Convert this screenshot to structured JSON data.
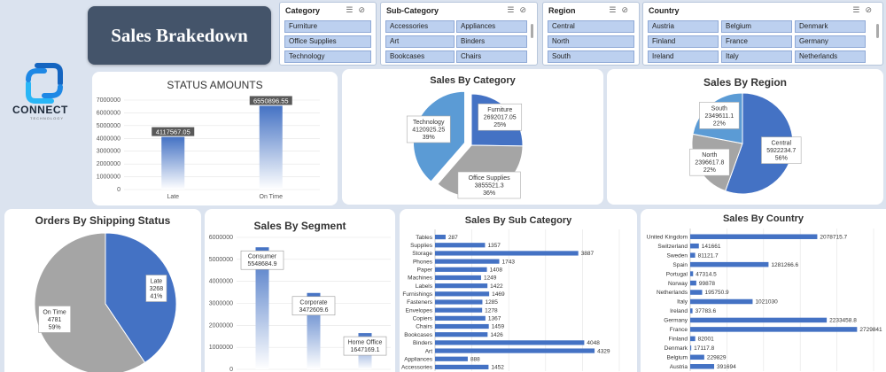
{
  "dashboard_title": "Sales Brakedown",
  "logo": {
    "name": "CONNECT",
    "tagline": "TECHNOLOGY",
    "icon": "connect-logo-icon"
  },
  "slicers": {
    "category": {
      "title": "Category",
      "items": [
        "Furniture",
        "Office Supplies",
        "Technology"
      ]
    },
    "subcategory": {
      "title": "Sub-Category",
      "items": [
        "Accessories",
        "Appliances",
        "Art",
        "Binders",
        "Bookcases",
        "Chairs"
      ]
    },
    "region": {
      "title": "Region",
      "items": [
        "Central",
        "North",
        "South"
      ]
    },
    "country": {
      "title": "Country",
      "items": [
        "Austria",
        "Belgium",
        "Denmark",
        "Finland",
        "France",
        "Germany",
        "Ireland",
        "Italy",
        "Netherlands"
      ]
    },
    "icons": [
      "multi-select-icon",
      "clear-filter-icon"
    ]
  },
  "colors": {
    "blue": "#4472c4",
    "light_blue": "#5b9bd5",
    "gray": "#a5a5a5",
    "header": "#44546a"
  },
  "chart_data": [
    {
      "id": "status",
      "type": "bar",
      "title": "STATUS AMOUNTS",
      "categories": [
        "Late",
        "On Time"
      ],
      "values": [
        4117567.05,
        6550896.55
      ],
      "data_labels": [
        "4117567.05",
        "6550896.55"
      ],
      "yticks": [
        "7000000",
        "6000000",
        "5000000",
        "4000000",
        "3000000",
        "2000000",
        "1000000",
        "0"
      ],
      "ylim": [
        0,
        7000000
      ]
    },
    {
      "id": "category",
      "type": "pie",
      "title": "Sales By Category",
      "slices": [
        {
          "name": "Furniture",
          "value": 2692017.05,
          "percent": 25,
          "value_label": "2692017.05",
          "pct_label": "25%",
          "color": "#4472c4"
        },
        {
          "name": "Office Supplies",
          "value": 3855521.3,
          "percent": 36,
          "value_label": "3855521.3",
          "pct_label": "36%",
          "color": "#a5a5a5"
        },
        {
          "name": "Technology",
          "value": 4120925.25,
          "percent": 39,
          "value_label": "4120925.25",
          "pct_label": "39%",
          "color": "#5b9bd5"
        }
      ]
    },
    {
      "id": "region",
      "type": "pie",
      "title": "Sales By Region",
      "slices": [
        {
          "name": "Central",
          "value": 5922234.7,
          "percent": 56,
          "value_label": "5922234.7",
          "pct_label": "56%",
          "color": "#4472c4"
        },
        {
          "name": "North",
          "value": 2396617.8,
          "percent": 22,
          "value_label": "2396617.8",
          "pct_label": "22%",
          "color": "#a5a5a5"
        },
        {
          "name": "South",
          "value": 2349611.1,
          "percent": 22,
          "value_label": "2349611.1",
          "pct_label": "22%",
          "color": "#5b9bd5"
        }
      ]
    },
    {
      "id": "shipping",
      "type": "pie",
      "title": "Orders By Shipping Status",
      "slices": [
        {
          "name": "Late",
          "value": 3268,
          "percent": 41,
          "value_label": "3268",
          "pct_label": "41%",
          "color": "#4472c4"
        },
        {
          "name": "On Time",
          "value": 4781,
          "percent": 59,
          "value_label": "4781",
          "pct_label": "59%",
          "color": "#a5a5a5"
        }
      ]
    },
    {
      "id": "segment",
      "type": "bar",
      "title": "Sales By Segment",
      "categories": [
        "Consumer",
        "Corporate",
        "Home Office"
      ],
      "values": [
        5548684.9,
        3472609.6,
        1647169.1
      ],
      "data_labels": [
        "5548684.9",
        "3472609.6",
        "1647169.1"
      ],
      "yticks": [
        "6000000",
        "5000000",
        "4000000",
        "3000000",
        "2000000",
        "1000000",
        "0"
      ],
      "ylim": [
        0,
        6000000
      ]
    },
    {
      "id": "subcategory",
      "type": "bar",
      "orientation": "horizontal",
      "title": "Sales By Sub Category",
      "categories": [
        "Tables",
        "Supplies",
        "Storage",
        "Phones",
        "Paper",
        "Machines",
        "Labels",
        "Furnishings",
        "Fasteners",
        "Envelopes",
        "Copiers",
        "Chairs",
        "Bookcases",
        "Binders",
        "Art",
        "Appliances",
        "Accessories"
      ],
      "values": [
        287,
        1357,
        3887,
        1743,
        1408,
        1249,
        1422,
        1469,
        1285,
        1278,
        1367,
        1459,
        1426,
        4048,
        4329,
        888,
        1452
      ],
      "data_labels": [
        "287",
        "1357",
        "3887",
        "1743",
        "1408",
        "1249",
        "1422",
        "1469",
        "1285",
        "1278",
        "1367",
        "1459",
        "1426",
        "4048",
        "4329",
        "888",
        "1452"
      ],
      "xlim": [
        0,
        5000
      ]
    },
    {
      "id": "country",
      "type": "bar",
      "orientation": "horizontal",
      "title": "Sales By Country",
      "categories": [
        "United Kingdom",
        "Switzerland",
        "Sweden",
        "Spain",
        "Portugal",
        "Norway",
        "Netherlands",
        "Italy",
        "Ireland",
        "Germany",
        "France",
        "Finland",
        "Denmark",
        "Belgium",
        "Austria"
      ],
      "values": [
        2078715.7,
        141661,
        81121.7,
        1281266.6,
        47314.5,
        99878,
        195750.9,
        1021030,
        37783.6,
        2233458.8,
        2729841,
        82001,
        17117.8,
        229829,
        391694
      ],
      "data_labels": [
        "2078715.7",
        "141661",
        "81121.7",
        "1281266.6",
        "47314.5",
        "99878",
        "195750.9",
        "1021030",
        "37783.6",
        "2233458.8",
        "2729841",
        "82001",
        "17117.8",
        "229829",
        "391694"
      ],
      "xlim": [
        0,
        3000000
      ]
    }
  ]
}
